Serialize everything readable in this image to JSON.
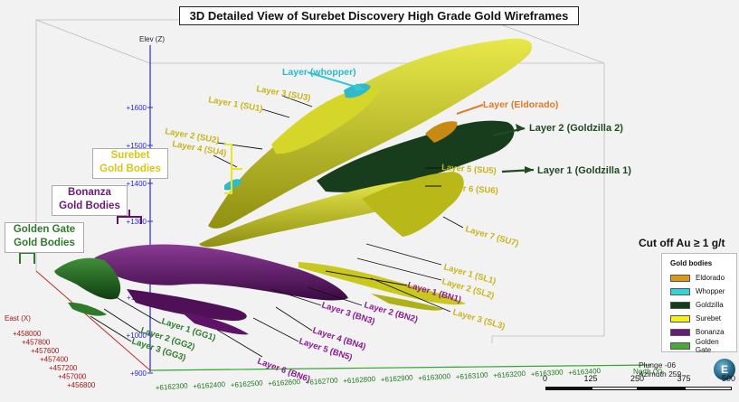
{
  "title": "3D Detailed View of Surebet Discovery High Grade Gold Wireframes",
  "axes": {
    "elev_label": "Elev (Z)",
    "elev_ticks": [
      "+1600",
      "+1500",
      "+1400",
      "+1300",
      "+1200",
      "+1100",
      "+1000",
      "+900"
    ],
    "east_label": "East (X)",
    "east_ticks": [
      "+458000",
      "+457800",
      "+457600",
      "+457400",
      "+457200",
      "+457000",
      "+456800"
    ],
    "north_label": "North (Y)",
    "north_ticks": [
      "+6162300",
      "+6162400",
      "+6162500",
      "+6162600",
      "+6162700",
      "+6162800",
      "+6162900",
      "+6163000",
      "+6163100",
      "+6163200",
      "+6163300",
      "+6163400"
    ]
  },
  "group_labels": {
    "surebet": "Surebet\nGold Bodies",
    "bonanza": "Bonanza\nGold Bodies",
    "golden_gate": "Golden Gate\nGold Bodies"
  },
  "layer_labels": {
    "whopper": "Layer (whopper)",
    "eldorado": "Layer (Eldorado)",
    "goldzilla2": "Layer 2 (Goldzilla 2)",
    "goldzilla1": "Layer 1 (Goldzilla 1)",
    "su3": "Layer 3 (SU3)",
    "su1": "Layer 1 (SU1)",
    "su2": "Layer 2 (SU2)",
    "su4": "Layer 4 (SU4)",
    "su5": "Layer 5 (SU5)",
    "su6": "Layer 6 (SU6)",
    "su7": "Layer 7 (SU7)",
    "sl1": "Layer 1 (SL1)",
    "sl2": "Layer 2 (SL2)",
    "sl3": "Layer 3 (SL3)",
    "bn1": "Layer 1 (BN1)",
    "bn2": "Layer 2 (BN2)",
    "bn3": "Layer 3 (BN3)",
    "bn4": "Layer 4 (BN4)",
    "bn5": "Layer 5 (BN5)",
    "bn6": "Layer 6 (BN6)",
    "gg1": "Layer 1 (GG1)",
    "gg2": "Layer 2 (GG2)",
    "gg3": "Layer 3 (GG3)"
  },
  "cutoff": "Cut off Au ≥ 1 g/t",
  "legend": {
    "title": "Gold bodies",
    "items": [
      {
        "label": "Eldorado",
        "color": "#d99a1a"
      },
      {
        "label": "Whopper",
        "color": "#3ad0d8"
      },
      {
        "label": "Goldzilla",
        "color": "#123d1a"
      },
      {
        "label": "Surebet",
        "color": "#f2f21a"
      },
      {
        "label": "Bonanza",
        "color": "#6a1a73"
      },
      {
        "label": "Golden Gate",
        "color": "#49a83c"
      }
    ]
  },
  "view": {
    "plunge": "Plunge -06",
    "azimuth": "Azimuth 259"
  },
  "compass_letter": "E",
  "scale": {
    "ticks": [
      "0",
      "125",
      "250",
      "375",
      "500"
    ]
  },
  "colors": {
    "surebet": "#c8c81e",
    "bonanza": "#5e1466",
    "goldzilla": "#173d1c",
    "golden_gate": "#2e7a2a",
    "eldorado": "#c98a14",
    "whopper": "#33b8c8"
  }
}
